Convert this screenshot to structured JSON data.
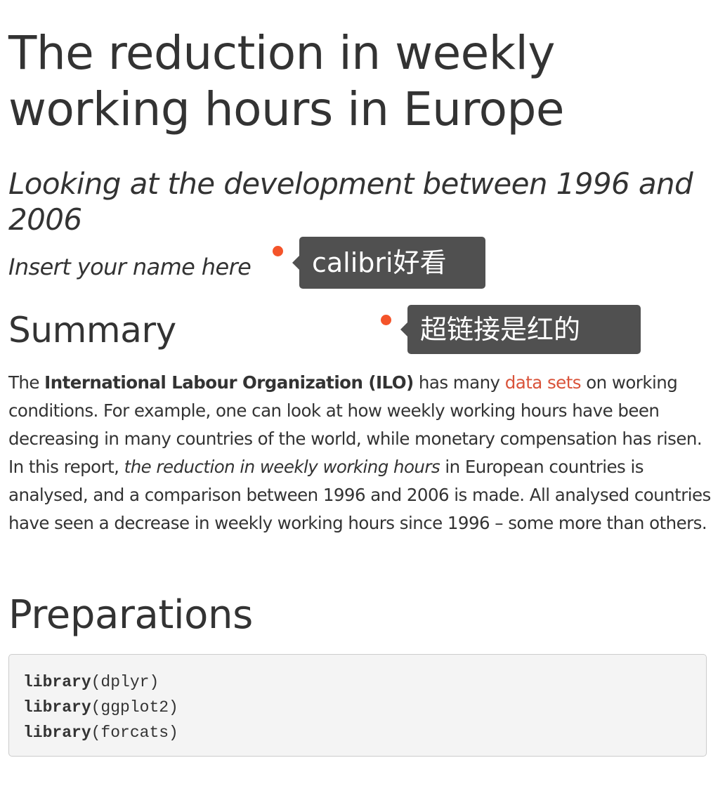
{
  "doc": {
    "title": "The reduction in weekly working hours in Europe",
    "subtitle": "Looking at the development between 1996 and 2006",
    "author": "Insert your name here"
  },
  "summary": {
    "heading": "Summary",
    "p_text_1": "The ",
    "p_bold_1": "International Labour Organization (ILO)",
    "p_text_2": " has many ",
    "p_link_1": "data sets",
    "p_text_3": " on working conditions. For example, one can look at how weekly working hours have been decreasing in many countries of the world, while monetary compensation has risen. In this report, ",
    "p_italic_1": "the reduction in weekly working hours",
    "p_text_4": " in European countries is analysed, and a comparison between 1996 and 2006 is made. All analysed countries have seen a decrease in weekly working hours since 1996 – some more than others."
  },
  "preparations": {
    "heading": "Preparations",
    "code": [
      {
        "fn": "library",
        "arg": "(dplyr)"
      },
      {
        "fn": "library",
        "arg": "(ggplot2)"
      },
      {
        "fn": "library",
        "arg": "(forcats)"
      }
    ]
  },
  "annotations": [
    {
      "text": "calibri好看"
    },
    {
      "text": "超链接是红的"
    }
  ],
  "colors": {
    "link": "#d9533a",
    "annotation_dot": "#f4542a",
    "annotation_bg": "#505050"
  }
}
